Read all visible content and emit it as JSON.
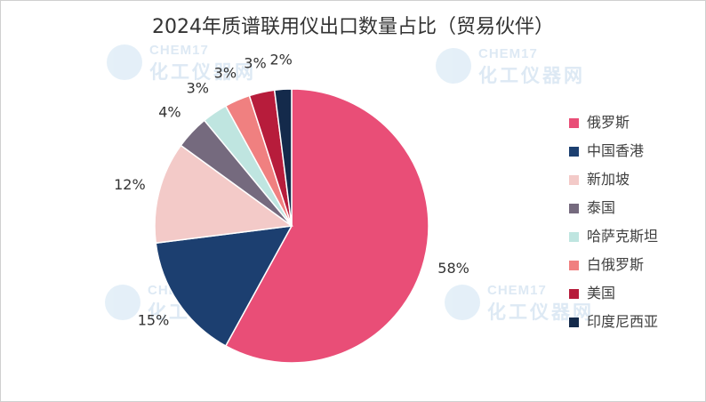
{
  "chart_data": {
    "type": "pie",
    "title": "2024年质谱联用仪出口数量占比（贸易伙伴）",
    "slices": [
      {
        "name": "俄罗斯",
        "value": 58,
        "label": "58%",
        "color": "#e94e77"
      },
      {
        "name": "中国香港",
        "value": 15,
        "label": "15%",
        "color": "#1c3f70"
      },
      {
        "name": "新加坡",
        "value": 12,
        "label": "12%",
        "color": "#f3cac8"
      },
      {
        "name": "泰国",
        "value": 4,
        "label": "4%",
        "color": "#756a7e"
      },
      {
        "name": "哈萨克斯坦",
        "value": 3,
        "label": "3%",
        "color": "#bfe5e0"
      },
      {
        "name": "白俄罗斯",
        "value": 3,
        "label": "3%",
        "color": "#f08080"
      },
      {
        "name": "美国",
        "value": 3,
        "label": "3%",
        "color": "#b71c3b"
      },
      {
        "name": "印度尼西亚",
        "value": 2,
        "label": "2%",
        "color": "#142a4b"
      }
    ],
    "legend_position": "right"
  },
  "watermark": {
    "brand": "CHEM17",
    "name": "化工仪器网"
  }
}
